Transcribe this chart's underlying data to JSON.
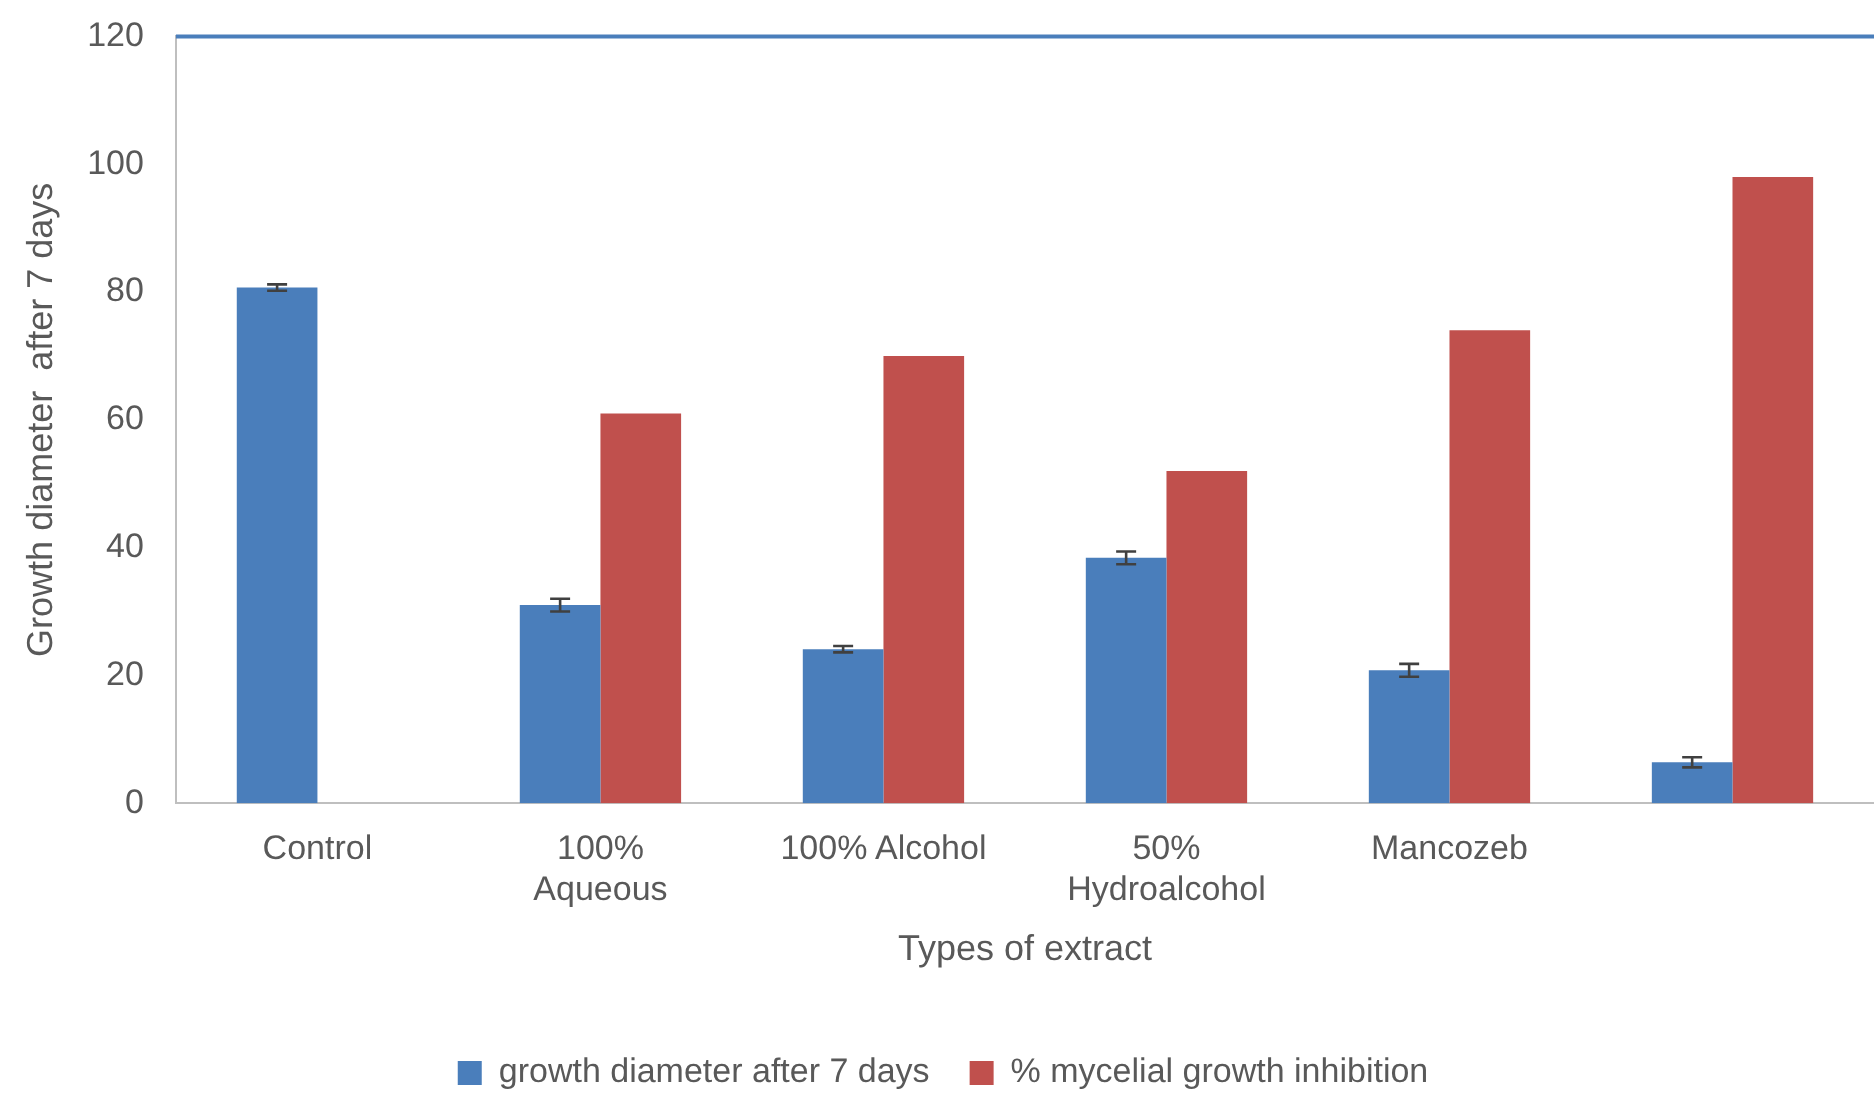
{
  "chart_data": {
    "type": "bar",
    "xlabel": "Types of extract",
    "ylabel": "Growth diameter  after 7 days",
    "categories": [
      "Control",
      "100% Aqueous",
      "100% Alcohol",
      "50% Hydroalcohol",
      "Mancozeb",
      null
    ],
    "series": [
      {
        "name": "growth diameter after 7 days",
        "color": "#4a7ebb",
        "values": [
          80.7,
          31,
          24.1,
          38.4,
          20.8,
          6.4
        ],
        "errors": [
          0.5,
          1,
          0.5,
          1,
          1,
          0.8
        ]
      },
      {
        "name": "% mycelial growth inhibition",
        "color": "#c0504d",
        "values": [
          null,
          61,
          70,
          52,
          74,
          98
        ]
      }
    ],
    "ylim": [
      0,
      120
    ],
    "yticks": [
      0,
      20,
      40,
      60,
      80,
      100,
      120
    ],
    "grid": false,
    "legend": "bottom",
    "ref_lines": [
      {
        "axis": "y",
        "value": 120,
        "color": "#4a7ebb"
      }
    ]
  }
}
